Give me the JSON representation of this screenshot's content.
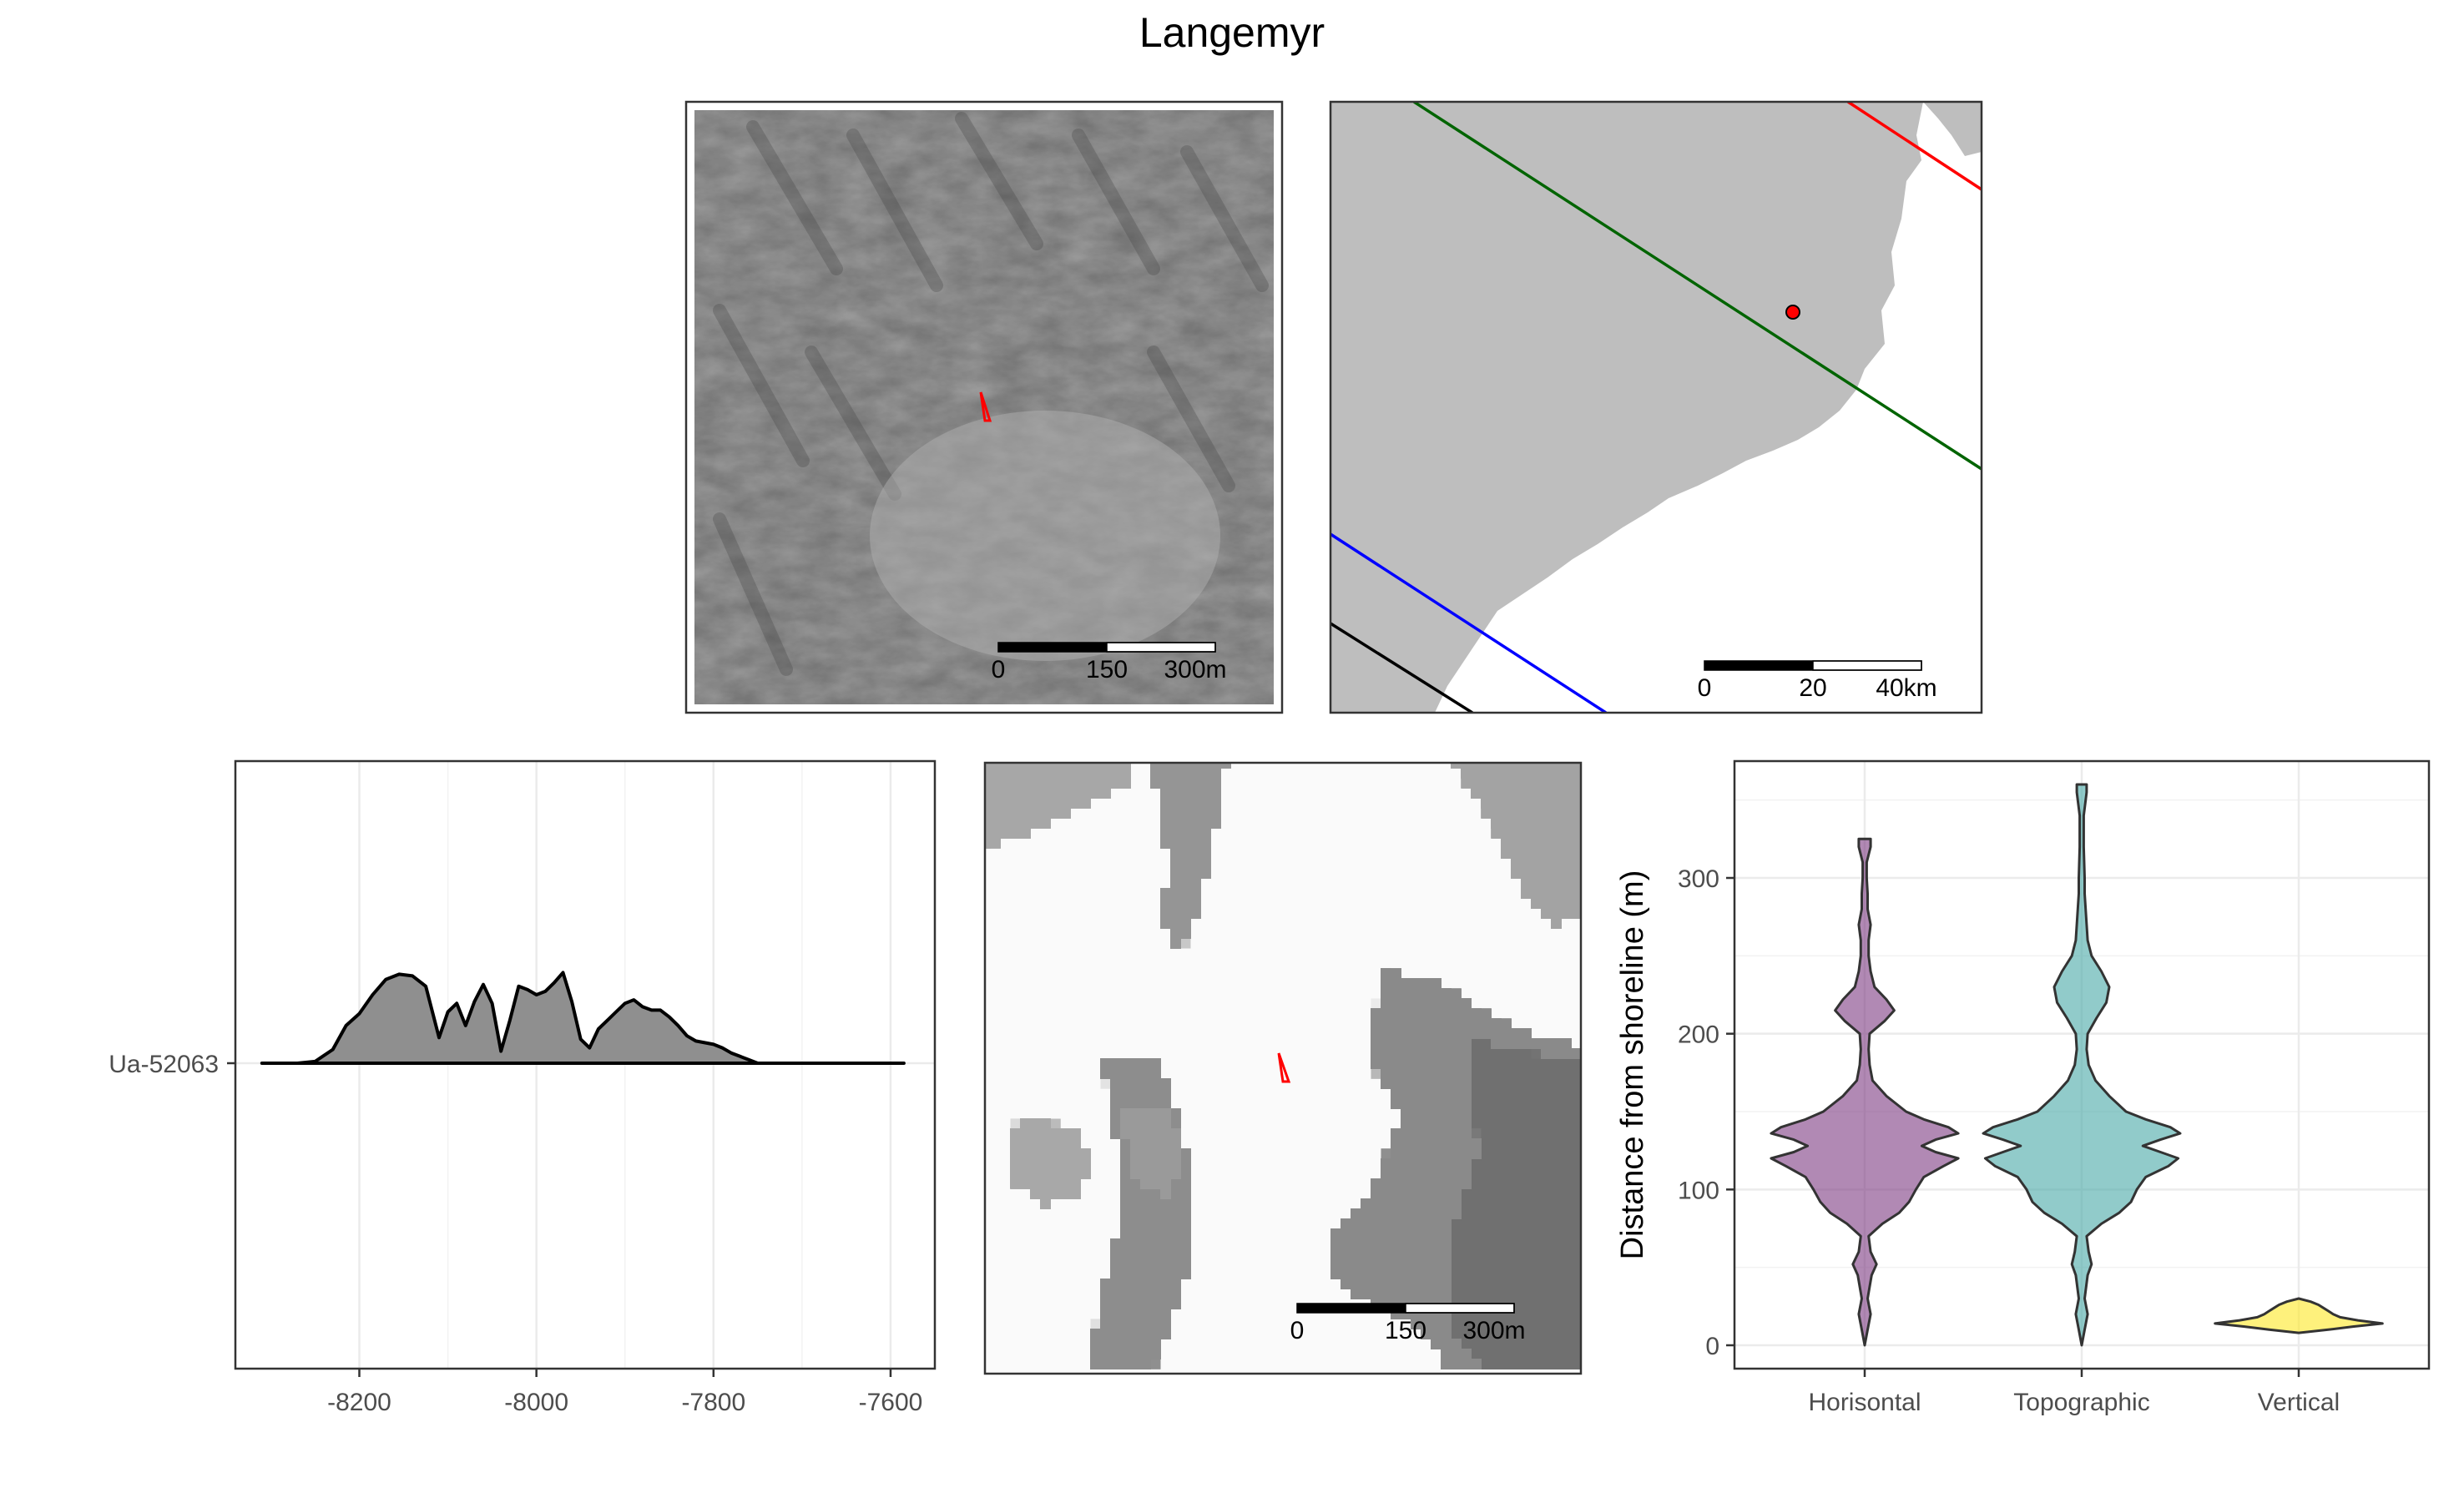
{
  "figure": {
    "title": "Langemyr"
  },
  "hillshade_map": {
    "scalebar": {
      "labels": [
        "0",
        "150",
        "300m"
      ]
    },
    "site_marker_color": "#ff0000"
  },
  "overview_map": {
    "scalebar": {
      "labels": [
        "0",
        "20",
        "40km"
      ]
    },
    "land_color": "#bebebe",
    "isobase_colors": [
      "#ff0000",
      "#006400",
      "#0000ff",
      "#000000"
    ],
    "site_point_color": "#ff0000"
  },
  "dem_map": {
    "scalebar": {
      "labels": [
        "0",
        "150",
        "300m"
      ]
    },
    "site_marker_color": "#ff0000"
  },
  "chart_data": [
    {
      "type": "area",
      "title": "",
      "xlabel": "",
      "ylabel": "",
      "x_ticks": [
        -8200,
        -8000,
        -7800,
        -7600
      ],
      "xlim": [
        -8340,
        -7550
      ],
      "y_categories": [
        "Ua-52063"
      ],
      "grid": true,
      "series": [
        {
          "name": "Ua-52063",
          "x": [
            -8310,
            -8270,
            -8250,
            -8230,
            -8215,
            -8200,
            -8185,
            -8170,
            -8155,
            -8140,
            -8125,
            -8110,
            -8100,
            -8090,
            -8080,
            -8070,
            -8060,
            -8050,
            -8040,
            -8030,
            -8020,
            -8010,
            -8000,
            -7990,
            -7980,
            -7970,
            -7960,
            -7950,
            -7940,
            -7930,
            -7920,
            -7910,
            -7900,
            -7890,
            -7880,
            -7870,
            -7860,
            -7850,
            -7840,
            -7830,
            -7820,
            -7810,
            -7800,
            -7790,
            -7780,
            -7770,
            -7760,
            -7750,
            -7740,
            -7720,
            -7700,
            -7680,
            -7660,
            -7640,
            -7620,
            -7600,
            -7585
          ],
          "density": [
            0.0,
            0.0,
            0.01,
            0.08,
            0.22,
            0.29,
            0.4,
            0.49,
            0.52,
            0.51,
            0.45,
            0.15,
            0.3,
            0.35,
            0.22,
            0.36,
            0.46,
            0.35,
            0.07,
            0.25,
            0.45,
            0.43,
            0.4,
            0.42,
            0.47,
            0.53,
            0.36,
            0.14,
            0.09,
            0.2,
            0.25,
            0.3,
            0.35,
            0.37,
            0.33,
            0.31,
            0.31,
            0.27,
            0.22,
            0.16,
            0.13,
            0.12,
            0.11,
            0.09,
            0.06,
            0.04,
            0.02,
            0.0,
            0.0,
            0.0,
            0.0,
            0.0,
            0.0,
            0.0,
            0.0,
            0.0,
            0.0
          ]
        }
      ]
    },
    {
      "type": "violin",
      "title": "",
      "xlabel": "",
      "ylabel": "Distance from shoreline (m)",
      "categories": [
        "Horisontal",
        "Topographic",
        "Vertical"
      ],
      "ylim": [
        -15,
        375
      ],
      "y_ticks": [
        0,
        100,
        200,
        300
      ],
      "grid": true,
      "series": [
        {
          "name": "Horisontal",
          "color": "#7d3b82",
          "y": [
            0,
            10,
            20,
            30,
            45,
            52,
            60,
            70,
            78,
            85,
            92,
            100,
            108,
            115,
            120,
            124,
            128,
            132,
            136,
            140,
            145,
            150,
            160,
            170,
            180,
            190,
            200,
            208,
            215,
            222,
            230,
            240,
            250,
            260,
            270,
            280,
            290,
            300,
            310,
            320,
            325
          ],
          "half_width": [
            0.0,
            0.03,
            0.06,
            0.03,
            0.07,
            0.12,
            0.06,
            0.04,
            0.18,
            0.35,
            0.45,
            0.52,
            0.6,
            0.8,
            0.95,
            0.72,
            0.58,
            0.72,
            0.95,
            0.85,
            0.6,
            0.42,
            0.22,
            0.08,
            0.05,
            0.04,
            0.05,
            0.2,
            0.3,
            0.22,
            0.1,
            0.06,
            0.04,
            0.04,
            0.06,
            0.03,
            0.03,
            0.02,
            0.02,
            0.06,
            0.06
          ]
        },
        {
          "name": "Topographic",
          "color": "#48a9a6",
          "y": [
            0,
            10,
            20,
            30,
            45,
            52,
            60,
            70,
            78,
            85,
            92,
            100,
            108,
            115,
            120,
            124,
            128,
            132,
            136,
            140,
            145,
            150,
            160,
            170,
            180,
            190,
            200,
            210,
            220,
            230,
            240,
            250,
            260,
            270,
            280,
            290,
            300,
            320,
            340,
            355,
            360
          ],
          "half_width": [
            0.0,
            0.03,
            0.06,
            0.03,
            0.06,
            0.1,
            0.07,
            0.05,
            0.2,
            0.38,
            0.5,
            0.56,
            0.65,
            0.88,
            0.98,
            0.8,
            0.62,
            0.8,
            1.0,
            0.9,
            0.65,
            0.45,
            0.28,
            0.14,
            0.07,
            0.05,
            0.06,
            0.15,
            0.25,
            0.28,
            0.2,
            0.1,
            0.06,
            0.05,
            0.04,
            0.03,
            0.03,
            0.02,
            0.02,
            0.05,
            0.05
          ]
        },
        {
          "name": "Vertical",
          "color": "#fde725",
          "y": [
            8,
            10,
            12,
            14,
            16,
            18,
            20,
            22,
            24,
            26,
            28,
            30
          ],
          "half_width": [
            0.0,
            0.3,
            0.55,
            0.85,
            0.6,
            0.42,
            0.35,
            0.3,
            0.25,
            0.2,
            0.12,
            0.0
          ]
        }
      ]
    }
  ]
}
